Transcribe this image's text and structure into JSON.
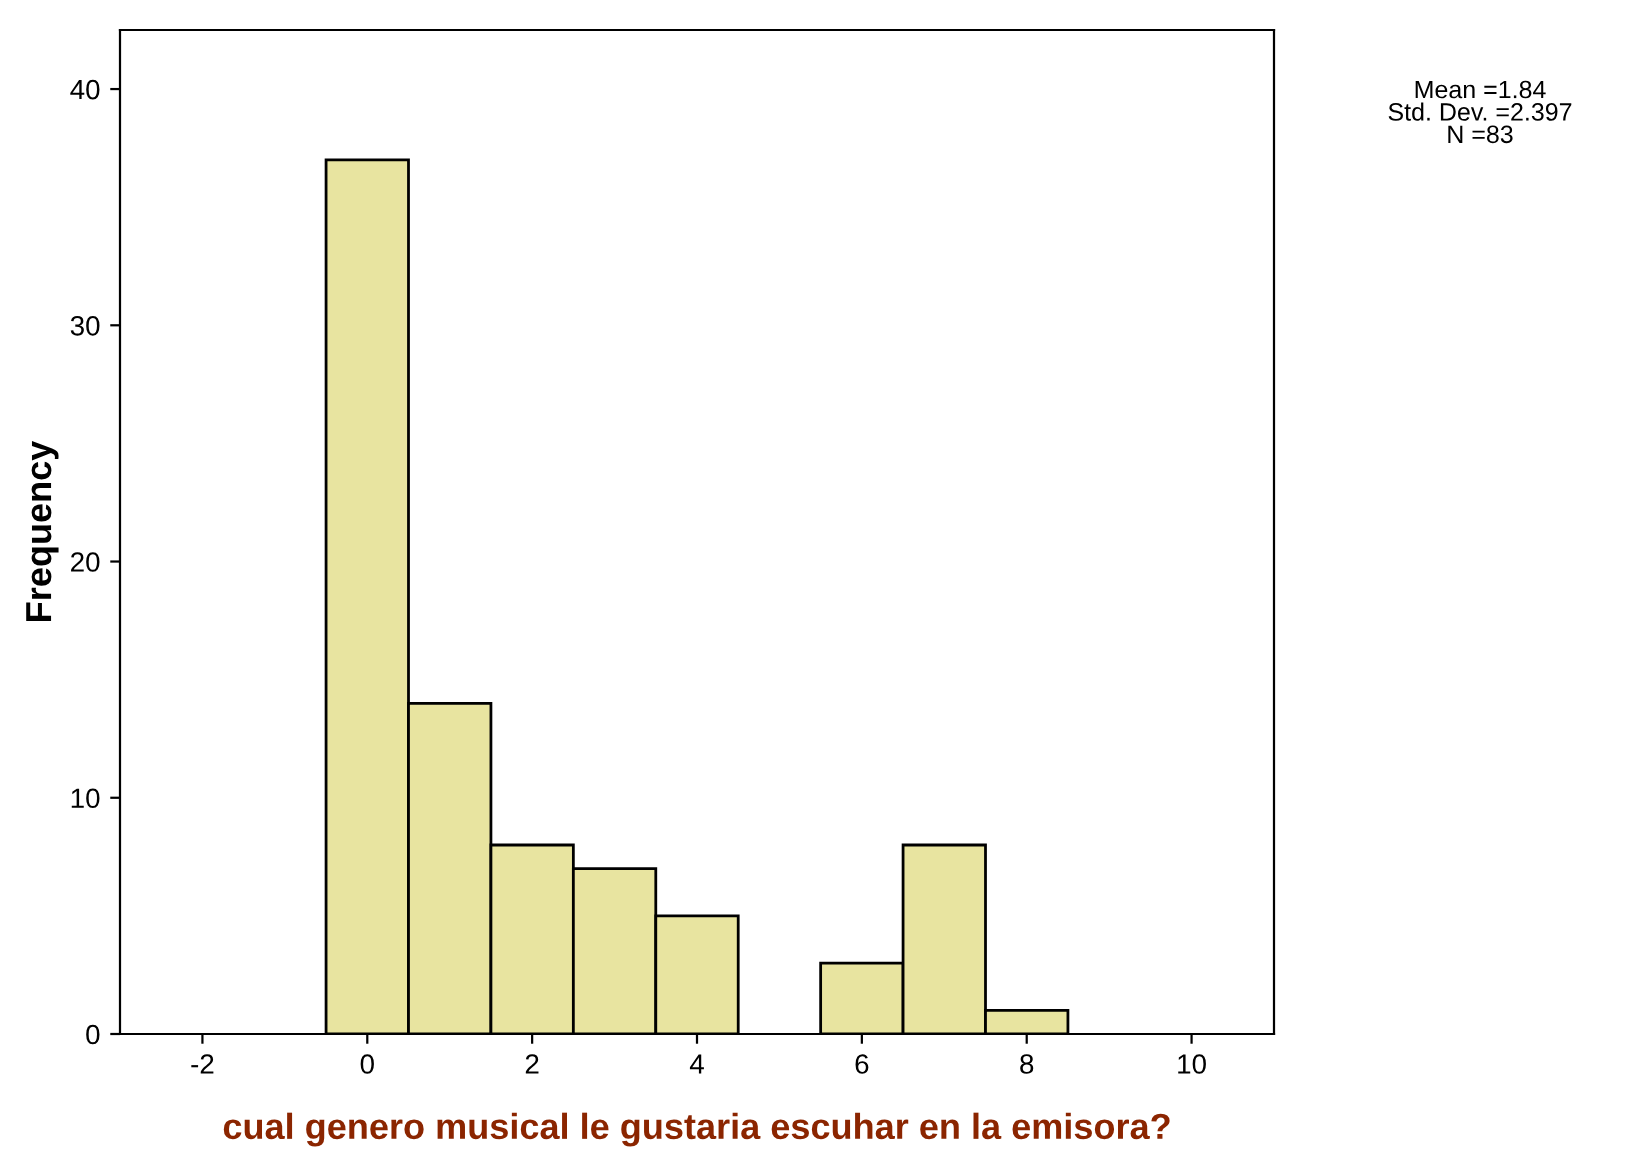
{
  "chart_data": {
    "type": "histogram",
    "xlabel": "cual genero musical le gustaria escuhar en la emisora?",
    "ylabel": "Frequency",
    "bins": [
      -0.5,
      0.5,
      1.5,
      2.5,
      3.5,
      4.5,
      5.5,
      6.5,
      7.5,
      8.5
    ],
    "values": [
      37,
      14,
      8,
      7,
      5,
      0,
      3,
      8,
      1
    ],
    "color": "#e8e4a0",
    "xlim": [
      -3,
      11
    ],
    "xticks": [
      -2,
      0,
      2,
      4,
      6,
      8,
      10
    ],
    "ylim": [
      0,
      42.5
    ],
    "yticks": [
      0,
      10,
      20,
      30,
      40
    ],
    "grid": false,
    "annotations": [
      "Mean =1.84\nStd. Dev. =2.397\nN =83"
    ]
  }
}
